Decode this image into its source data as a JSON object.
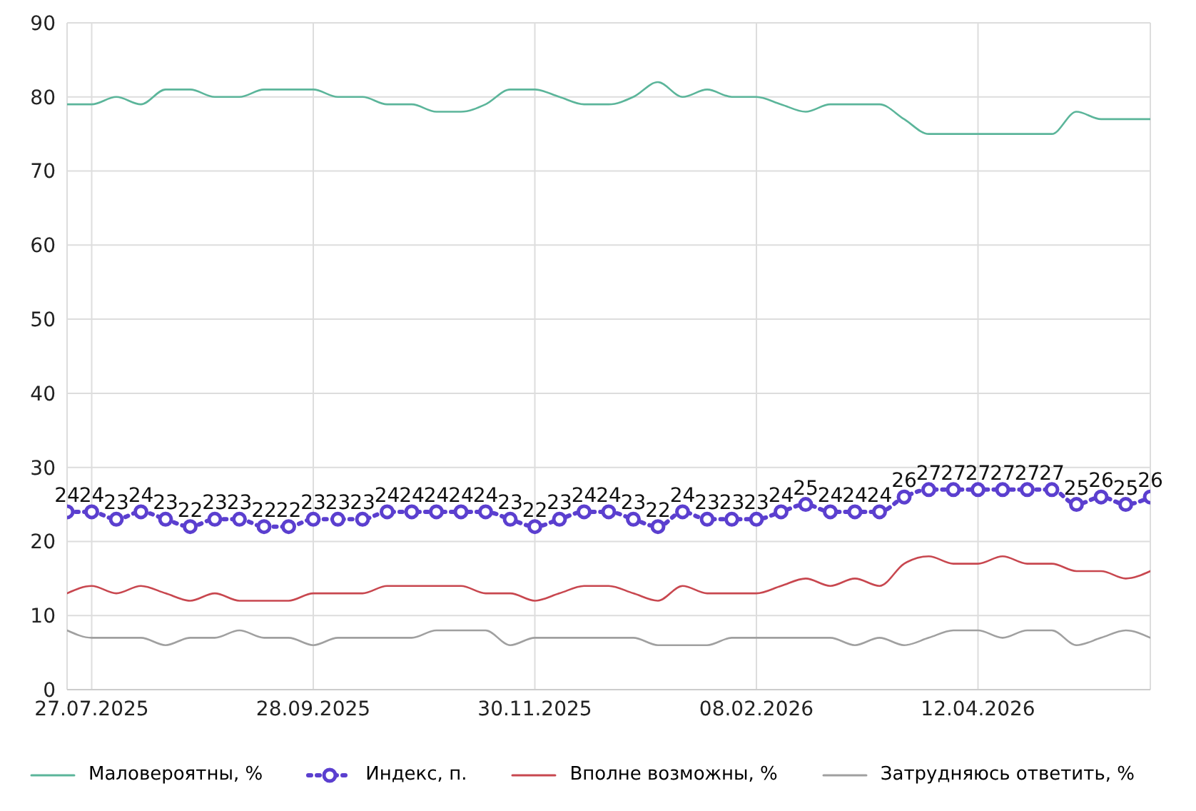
{
  "chart_data": {
    "type": "line",
    "categories": [
      null,
      "27.07.2025",
      null,
      null,
      null,
      null,
      null,
      null,
      null,
      null,
      "28.09.2025",
      null,
      null,
      null,
      null,
      null,
      null,
      null,
      null,
      "30.11.2025",
      null,
      null,
      null,
      null,
      null,
      null,
      null,
      null,
      "08.02.2026",
      null,
      null,
      null,
      null,
      null,
      null,
      null,
      null,
      "12.04.2026",
      null,
      null,
      null,
      null,
      null,
      null,
      null
    ],
    "series": [
      {
        "name": "Маловероятны, %",
        "color": "#5bb59a",
        "line_style": "solid",
        "marker": "none",
        "values": [
          79,
          79,
          80,
          79,
          81,
          81,
          80,
          80,
          81,
          81,
          81,
          80,
          80,
          79,
          79,
          78,
          78,
          79,
          81,
          81,
          80,
          79,
          79,
          80,
          82,
          80,
          81,
          80,
          80,
          79,
          78,
          79,
          79,
          79,
          77,
          75,
          75,
          75,
          75,
          75,
          75,
          78,
          77,
          77,
          77
        ]
      },
      {
        "name": "Индекс, п.",
        "color": "#5b3fcf",
        "line_style": "dotted",
        "marker": "circle",
        "data_labels": true,
        "values": [
          24,
          24,
          23,
          24,
          23,
          22,
          23,
          23,
          22,
          22,
          23,
          23,
          23,
          24,
          24,
          24,
          24,
          24,
          23,
          22,
          23,
          24,
          24,
          23,
          22,
          24,
          23,
          23,
          23,
          24,
          25,
          24,
          24,
          24,
          26,
          27,
          27,
          27,
          27,
          27,
          27,
          25,
          26,
          25,
          26
        ]
      },
      {
        "name": "Вполне возможны, %",
        "color": "#c8474f",
        "line_style": "solid",
        "marker": "none",
        "values": [
          13,
          14,
          13,
          14,
          13,
          12,
          13,
          12,
          12,
          12,
          13,
          13,
          13,
          14,
          14,
          14,
          14,
          13,
          13,
          12,
          13,
          14,
          14,
          13,
          12,
          14,
          13,
          13,
          13,
          14,
          15,
          14,
          15,
          14,
          17,
          18,
          17,
          17,
          18,
          17,
          17,
          16,
          16,
          15,
          16
        ]
      },
      {
        "name": "Затрудняюсь ответить, %",
        "color": "#a0a0a0",
        "line_style": "solid",
        "marker": "none",
        "values": [
          8,
          7,
          7,
          7,
          6,
          7,
          7,
          8,
          7,
          7,
          6,
          7,
          7,
          7,
          7,
          8,
          8,
          8,
          6,
          7,
          7,
          7,
          7,
          7,
          6,
          6,
          6,
          7,
          7,
          7,
          7,
          7,
          6,
          7,
          6,
          7,
          8,
          8,
          7,
          8,
          8,
          6,
          7,
          8,
          7
        ]
      }
    ],
    "ylim": [
      0,
      90
    ],
    "yticks": [
      0,
      10,
      20,
      30,
      40,
      50,
      60,
      70,
      80,
      90
    ],
    "grid": true,
    "legend": "bottom"
  }
}
